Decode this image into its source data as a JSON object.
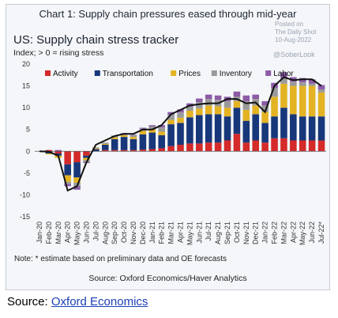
{
  "page": {
    "chart_title": "Chart 1: Supply chain pressures eased through mid-year",
    "subtitle": "US: Supply chain stress tracker",
    "ylabel": "Index; > 0 = rising stress",
    "watermark_top": "Posted on",
    "watermark_site": "The Daily Shot",
    "watermark_date": "10-Aug-2022",
    "watermark_handle": "@SoberLook",
    "note": "Note: * estimate based on preliminary data and OE forecasts",
    "source_inner": "Source: Oxford Economics/Haver Analytics",
    "source_outer_prefix": "Source: ",
    "source_outer_link": "Oxford Economics"
  },
  "chart_data": {
    "type": "bar",
    "stacked": true,
    "categories": [
      "Jan-20",
      "Feb-20",
      "Mar-20",
      "Apr-20",
      "May-20",
      "Jun-20",
      "Jul-20",
      "Aug-20",
      "Sep-20",
      "Oct-20",
      "Nov-20",
      "Dec-20",
      "Jan-21",
      "Feb-21",
      "Mar-21",
      "Apr-21",
      "May-21",
      "Jun-21",
      "Jul-21",
      "Aug-21",
      "Sep-21",
      "Oct-21",
      "Nov-21",
      "Dec-21",
      "Jan-22",
      "Feb-22",
      "Mar-22",
      "Apr-22",
      "May-22",
      "Jun-22",
      "Jul-22*"
    ],
    "xtick_labels": [
      "Jan-20",
      "Feb-20",
      "Mar-20",
      "Apr-20",
      "May-20",
      "Jun-20",
      "Jul-20",
      "Aug-20",
      "Sep-20",
      "Oct-20",
      "Nov-20",
      "Dec-20",
      "Jan-21",
      "Feb-21",
      "Mar-21",
      "Apr-21",
      "May-21",
      "Jun-21",
      "Jul-21",
      "Aug-21",
      "Sep-21",
      "Oct-21",
      "Nov-21",
      "Dec-21",
      "Jan-22",
      "Feb-22",
      "Mar-22",
      "Apr-22",
      "May-22",
      "Jun-22",
      "Jul-22*"
    ],
    "series": [
      {
        "name": "Activity",
        "color": "#d42a2a",
        "values": [
          0,
          0.3,
          -0.5,
          -3.0,
          -2.5,
          -1.0,
          0,
          0.3,
          0.3,
          0.3,
          0.3,
          0.4,
          0.5,
          0.7,
          1.2,
          1.5,
          1.8,
          1.8,
          2.0,
          2.0,
          2.5,
          4.0,
          2.0,
          2.5,
          2.0,
          3.0,
          3.0,
          2.5,
          2.5,
          2.5,
          2.5
        ]
      },
      {
        "name": "Transportation",
        "color": "#17377a",
        "values": [
          0,
          -0.5,
          -0.5,
          -2.5,
          -3.5,
          -0.5,
          0.5,
          1.2,
          2.5,
          3.0,
          2.5,
          3.5,
          3.8,
          3.0,
          5.0,
          5.0,
          6.0,
          6.5,
          6.5,
          6.5,
          5.5,
          6.0,
          5.0,
          6.0,
          4.5,
          5.0,
          7.0,
          6.0,
          5.5,
          5.5,
          5.5
        ]
      },
      {
        "name": "Prices",
        "color": "#e3b324",
        "values": [
          0,
          -0.2,
          -0.5,
          -1.5,
          -1.2,
          -0.5,
          0.2,
          0.2,
          0.4,
          0.4,
          0.5,
          0.8,
          0.7,
          0.8,
          1.0,
          1.2,
          1.5,
          1.5,
          2.0,
          1.8,
          2.0,
          1.5,
          2.5,
          2.0,
          2.5,
          4.5,
          5.5,
          6.5,
          7.0,
          7.0,
          5.5
        ]
      },
      {
        "name": "Inventory",
        "color": "#9a9a9a",
        "values": [
          0,
          0,
          0,
          -0.5,
          -0.8,
          -0.5,
          0.2,
          0.3,
          0.3,
          0.4,
          0.4,
          0.5,
          0.7,
          1.0,
          1.2,
          1.2,
          1.0,
          1.5,
          1.5,
          1.5,
          1.5,
          1.0,
          2.0,
          1.5,
          1.5,
          2.0,
          1.3,
          1.0,
          0.8,
          0.5,
          0.7
        ]
      },
      {
        "name": "Labor",
        "color": "#8c5ba6",
        "values": [
          0,
          0,
          0.3,
          -0.5,
          -0.8,
          -0.2,
          0,
          0,
          0.1,
          0.1,
          0.1,
          0.2,
          0.3,
          0.5,
          0.6,
          0.7,
          0.7,
          0.8,
          1.0,
          1.0,
          1.0,
          1.2,
          1.3,
          1.0,
          1.0,
          1.2,
          1.3,
          1.0,
          1.0,
          1.0,
          1.0
        ]
      }
    ],
    "total_line": {
      "color": "#111111",
      "values": [
        0,
        -0.1,
        -1.0,
        -9.0,
        -8.0,
        -2.5,
        1.5,
        2.5,
        3.5,
        4.0,
        4.0,
        5.0,
        5.0,
        6.0,
        8.5,
        9.5,
        10.5,
        10.8,
        11.0,
        11.0,
        12.0,
        12.0,
        11.0,
        11.2,
        9.0,
        15.0,
        17.0,
        16.3,
        16.5,
        16.5,
        15.0
      ]
    },
    "ylim": [
      -15,
      20
    ],
    "yticks": [
      -15,
      -10,
      -5,
      0,
      5,
      10,
      15,
      20
    ],
    "grid": false,
    "legend_position": "top-left"
  }
}
